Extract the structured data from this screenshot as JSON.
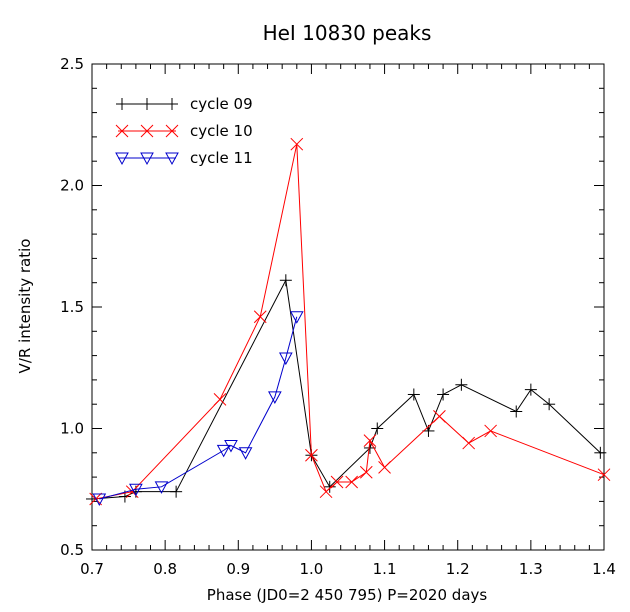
{
  "chart_data": {
    "type": "line",
    "title": "HeI 10830  peaks",
    "xlabel": "Phase (JD0=2 450 795)  P=2020 days",
    "ylabel": "V/R  intensity ratio",
    "xlim": [
      0.7,
      1.4
    ],
    "ylim": [
      0.5,
      2.5
    ],
    "xticks": [
      "0.7",
      "0.8",
      "0.9",
      "1.0",
      "1.1",
      "1.2",
      "1.3",
      "1.4"
    ],
    "yticks": [
      "0.5",
      "1.0",
      "1.5",
      "2.0",
      "2.5"
    ],
    "grid": false,
    "legend_position": "top-left",
    "series": [
      {
        "name": "cycle 09",
        "color": "#000000",
        "marker": "plus",
        "x": [
          0.7,
          0.745,
          0.76,
          0.815,
          0.965,
          1.0,
          1.025,
          1.08,
          1.09,
          1.14,
          1.16,
          1.18,
          1.205,
          1.28,
          1.3,
          1.325,
          1.395
        ],
        "y": [
          0.71,
          0.72,
          0.74,
          0.74,
          1.61,
          0.89,
          0.76,
          0.92,
          1.0,
          1.14,
          0.99,
          1.14,
          1.18,
          1.07,
          1.16,
          1.1,
          0.9
        ]
      },
      {
        "name": "cycle 10",
        "color": "#ff0000",
        "marker": "x",
        "x": [
          0.705,
          0.755,
          0.875,
          0.93,
          0.98,
          1.0,
          1.02,
          1.035,
          1.055,
          1.075,
          1.08,
          1.1,
          1.175,
          1.215,
          1.245,
          1.4
        ],
        "y": [
          0.71,
          0.74,
          1.12,
          1.46,
          2.17,
          0.89,
          0.74,
          0.78,
          0.78,
          0.82,
          0.95,
          0.84,
          1.05,
          0.94,
          0.99,
          0.81
        ]
      },
      {
        "name": "cycle 11",
        "color": "#0000cc",
        "marker": "triangle-down",
        "x": [
          0.71,
          0.76,
          0.795,
          0.88,
          0.89,
          0.91,
          0.95,
          0.965,
          0.98
        ],
        "y": [
          0.71,
          0.75,
          0.76,
          0.91,
          0.93,
          0.9,
          1.13,
          1.29,
          1.46
        ]
      }
    ]
  }
}
